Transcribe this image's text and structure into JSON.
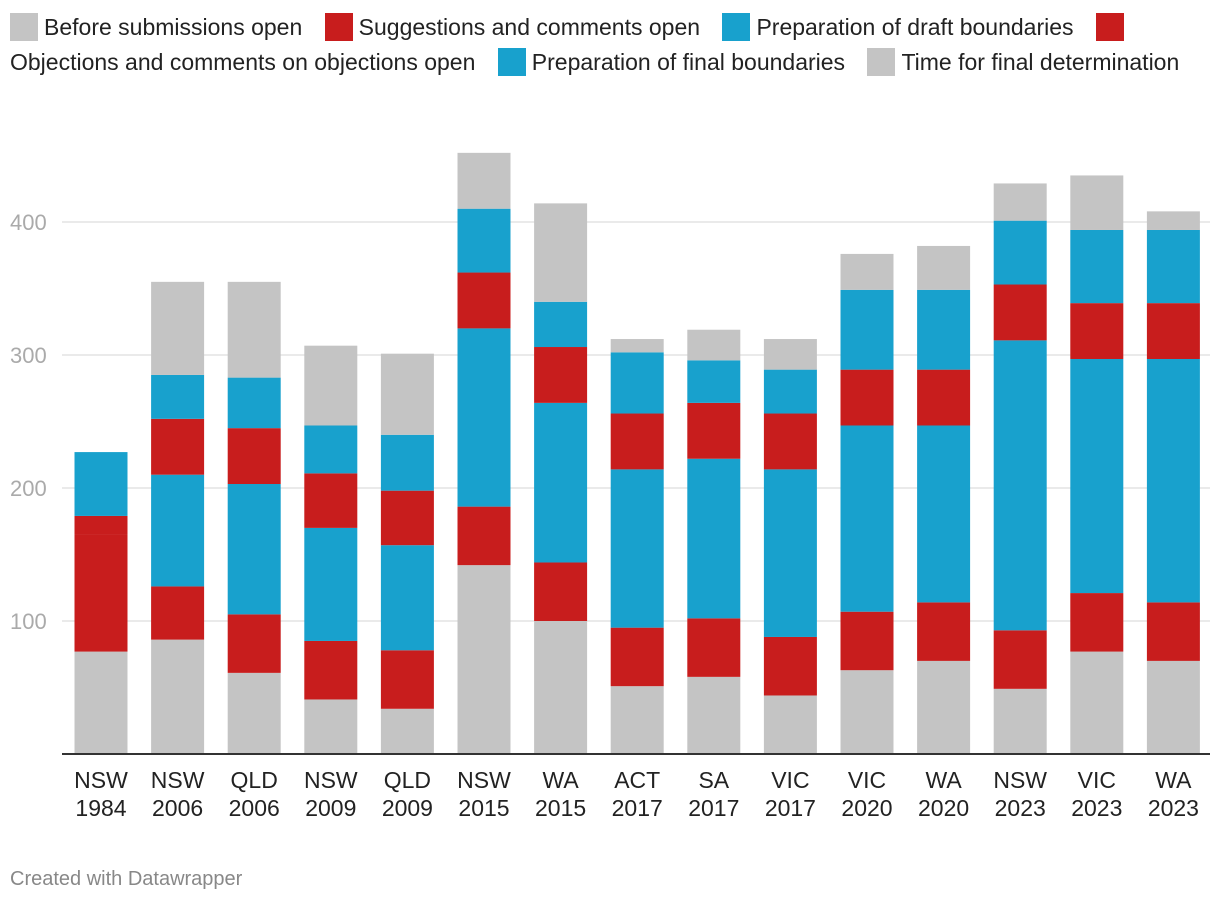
{
  "colors": {
    "grey": "#c4c4c4",
    "red": "#c81d1d",
    "blue": "#18a1cd",
    "grid": "#e3e3e3",
    "tick": "#aaaaaa",
    "axis": "#333333"
  },
  "legend": [
    {
      "label": "Before submissions open",
      "color": "#c4c4c4"
    },
    {
      "label": "Suggestions and comments open",
      "color": "#c81d1d"
    },
    {
      "label": "Preparation of draft boundaries",
      "color": "#18a1cd"
    },
    {
      "label": "Objections and comments on objections open",
      "color": "#c81d1d"
    },
    {
      "label": "Preparation of final boundaries",
      "color": "#18a1cd"
    },
    {
      "label": "Time for final determination",
      "color": "#c4c4c4"
    }
  ],
  "chart_data": {
    "type": "bar",
    "stacked": true,
    "categories": [
      [
        "NSW",
        "1984"
      ],
      [
        "NSW",
        "2006"
      ],
      [
        "QLD",
        "2006"
      ],
      [
        "NSW",
        "2009"
      ],
      [
        "QLD",
        "2009"
      ],
      [
        "NSW",
        "2015"
      ],
      [
        "WA",
        "2015"
      ],
      [
        "ACT",
        "2017"
      ],
      [
        "SA",
        "2017"
      ],
      [
        "VIC",
        "2017"
      ],
      [
        "VIC",
        "2020"
      ],
      [
        "WA",
        "2020"
      ],
      [
        "NSW",
        "2023"
      ],
      [
        "VIC",
        "2023"
      ],
      [
        "WA",
        "2023"
      ]
    ],
    "series": [
      {
        "name": "Before submissions open",
        "color": "#c4c4c4",
        "values": [
          77,
          86,
          61,
          41,
          34,
          142,
          100,
          51,
          58,
          44,
          63,
          70,
          49,
          77,
          70
        ]
      },
      {
        "name": "Suggestions and comments open",
        "color": "#c81d1d",
        "values": [
          88,
          40,
          44,
          44,
          44,
          44,
          44,
          44,
          44,
          44,
          44,
          44,
          44,
          44,
          44
        ]
      },
      {
        "name": "Preparation of draft boundaries",
        "color": "#18a1cd",
        "values": [
          0,
          84,
          98,
          85,
          79,
          134,
          120,
          119,
          120,
          126,
          140,
          133,
          218,
          176,
          183
        ]
      },
      {
        "name": "Objections and comments on objections open",
        "color": "#c81d1d",
        "values": [
          14,
          42,
          42,
          41,
          41,
          42,
          42,
          42,
          42,
          42,
          42,
          42,
          42,
          42,
          42
        ]
      },
      {
        "name": "Preparation of final boundaries",
        "color": "#18a1cd",
        "values": [
          48,
          33,
          38,
          36,
          42,
          48,
          34,
          46,
          32,
          33,
          60,
          60,
          48,
          55,
          55
        ]
      },
      {
        "name": "Time for final determination",
        "color": "#c4c4c4",
        "values": [
          0,
          70,
          72,
          60,
          61,
          42,
          74,
          10,
          23,
          23,
          27,
          33,
          28,
          41,
          14
        ]
      }
    ],
    "ylim": [
      0,
      460
    ],
    "yticks": [
      100,
      200,
      300,
      400
    ],
    "grid": true,
    "legend_position": "top"
  },
  "footer": "Created with Datawrapper"
}
